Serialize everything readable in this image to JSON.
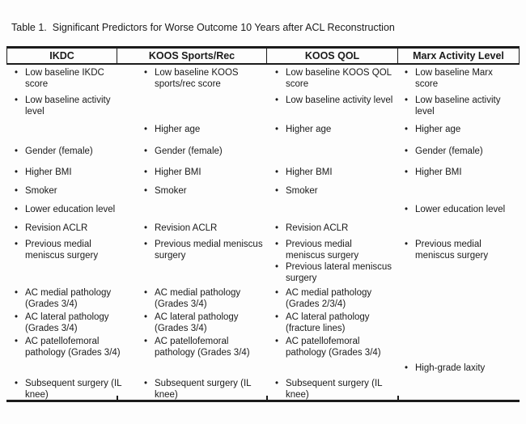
{
  "title": "Table 1.  Significant Predictors for Worse Outcome 10 Years after ACL Reconstruction",
  "table": {
    "headers": [
      "IKDC",
      "KOOS Sports/Rec",
      "KOOS QOL",
      "Marx Activity Level"
    ],
    "rows": [
      {
        "cells": [
          "Low baseline IKDC score",
          "Low baseline KOOS sports/rec score",
          "Low baseline KOOS QOL score",
          "Low baseline Marx score"
        ]
      },
      {
        "cells": [
          "Low baseline activity level",
          null,
          "Low baseline activity level",
          "Low baseline activity level"
        ]
      },
      {
        "cells": [
          null,
          "Higher age",
          "Higher age",
          "Higher age"
        ]
      },
      {
        "cells": [
          "Gender (female)",
          "Gender (female)",
          null,
          "Gender (female)"
        ]
      },
      {
        "cells": [
          "Higher BMI",
          "Higher BMI",
          "Higher BMI",
          "Higher BMI"
        ]
      },
      {
        "cells": [
          "Smoker",
          "Smoker",
          "Smoker",
          null
        ]
      },
      {
        "cells": [
          "Lower education level",
          null,
          null,
          "Lower education level"
        ]
      },
      {
        "cells": [
          "Revision ACLR",
          "Revision ACLR",
          "Revision ACLR",
          null
        ]
      },
      {
        "cells": [
          "Previous medial meniscus surgery",
          "Previous medial meniscus surgery",
          "Previous medial meniscus surgery",
          "Previous medial meniscus surgery"
        ]
      },
      {
        "cells": [
          null,
          null,
          "Previous lateral meniscus surgery",
          null
        ]
      },
      {
        "cells": [
          "AC medial pathology (Grades 3/4)",
          "AC medial pathology (Grades 3/4)",
          "AC medial pathology (Grades 2/3/4)",
          null
        ]
      },
      {
        "cells": [
          "AC lateral pathology (Grades 3/4)",
          "AC lateral pathology (Grades 3/4)",
          "AC lateral pathology (fracture lines)",
          null
        ]
      },
      {
        "cells": [
          "AC patellofemoral pathology (Grades 3/4)",
          "AC patellofemoral pathology (Grades 3/4)",
          "AC patellofemoral pathology (Grades 3/4)",
          null
        ]
      },
      {
        "cells": [
          null,
          null,
          null,
          "High-grade laxity"
        ]
      },
      {
        "cells": [
          "Subsequent surgery (IL knee)",
          "Subsequent surgery (IL knee)",
          "Subsequent surgery (IL knee)",
          null
        ]
      }
    ]
  },
  "bullet_icon": "•",
  "colors": {
    "text": "#1b1b1b",
    "rule": "#1c1c1c",
    "background": "#fdfdfd"
  }
}
